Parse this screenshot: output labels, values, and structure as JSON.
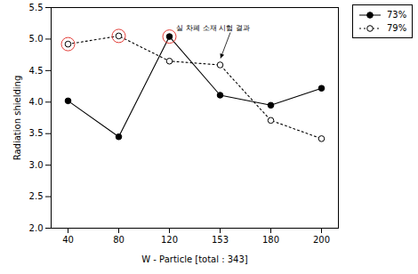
{
  "chart_data": {
    "type": "line",
    "x_label": "W - Particle [total : 343]",
    "y_label": "Radiation shielding",
    "categories": [
      40,
      80,
      120,
      153,
      180,
      200
    ],
    "series": [
      {
        "name": "73%",
        "color": "#000000",
        "marker": "circle",
        "line_style": "solid",
        "values": [
          4.02,
          3.45,
          5.04,
          4.11,
          3.95,
          4.22
        ]
      },
      {
        "name": "79%",
        "color": "#000000",
        "marker": "open_circle",
        "line_style": "dotted",
        "values": [
          4.92,
          5.05,
          4.65,
          4.59,
          3.71,
          3.42
        ]
      }
    ],
    "ylim": [
      2.0,
      5.5
    ],
    "yticks": [
      {
        "value": 2,
        "label": "2.0"
      },
      {
        "value": 2.5,
        "label": "2.5"
      },
      {
        "value": 3,
        "label": "3.0"
      },
      {
        "value": 3.5,
        "label": "3.5"
      },
      {
        "value": 4,
        "label": "4.0"
      },
      {
        "value": 4.5,
        "label": "4.5"
      },
      {
        "value": 5,
        "label": "5.0"
      },
      {
        "value": 5.5,
        "label": "5.5"
      }
    ],
    "grid": false,
    "legend": "right",
    "highlights": {
      "color": "#e23a34",
      "points": [
        {
          "series": "79%",
          "category": 40
        },
        {
          "series": "79%",
          "category": 80
        },
        {
          "series": "73%",
          "category": 120
        }
      ]
    },
    "annotations": [
      {
        "text": "실 차폐 소재 시험 결과",
        "series": "79%",
        "category": 153
      }
    ]
  }
}
